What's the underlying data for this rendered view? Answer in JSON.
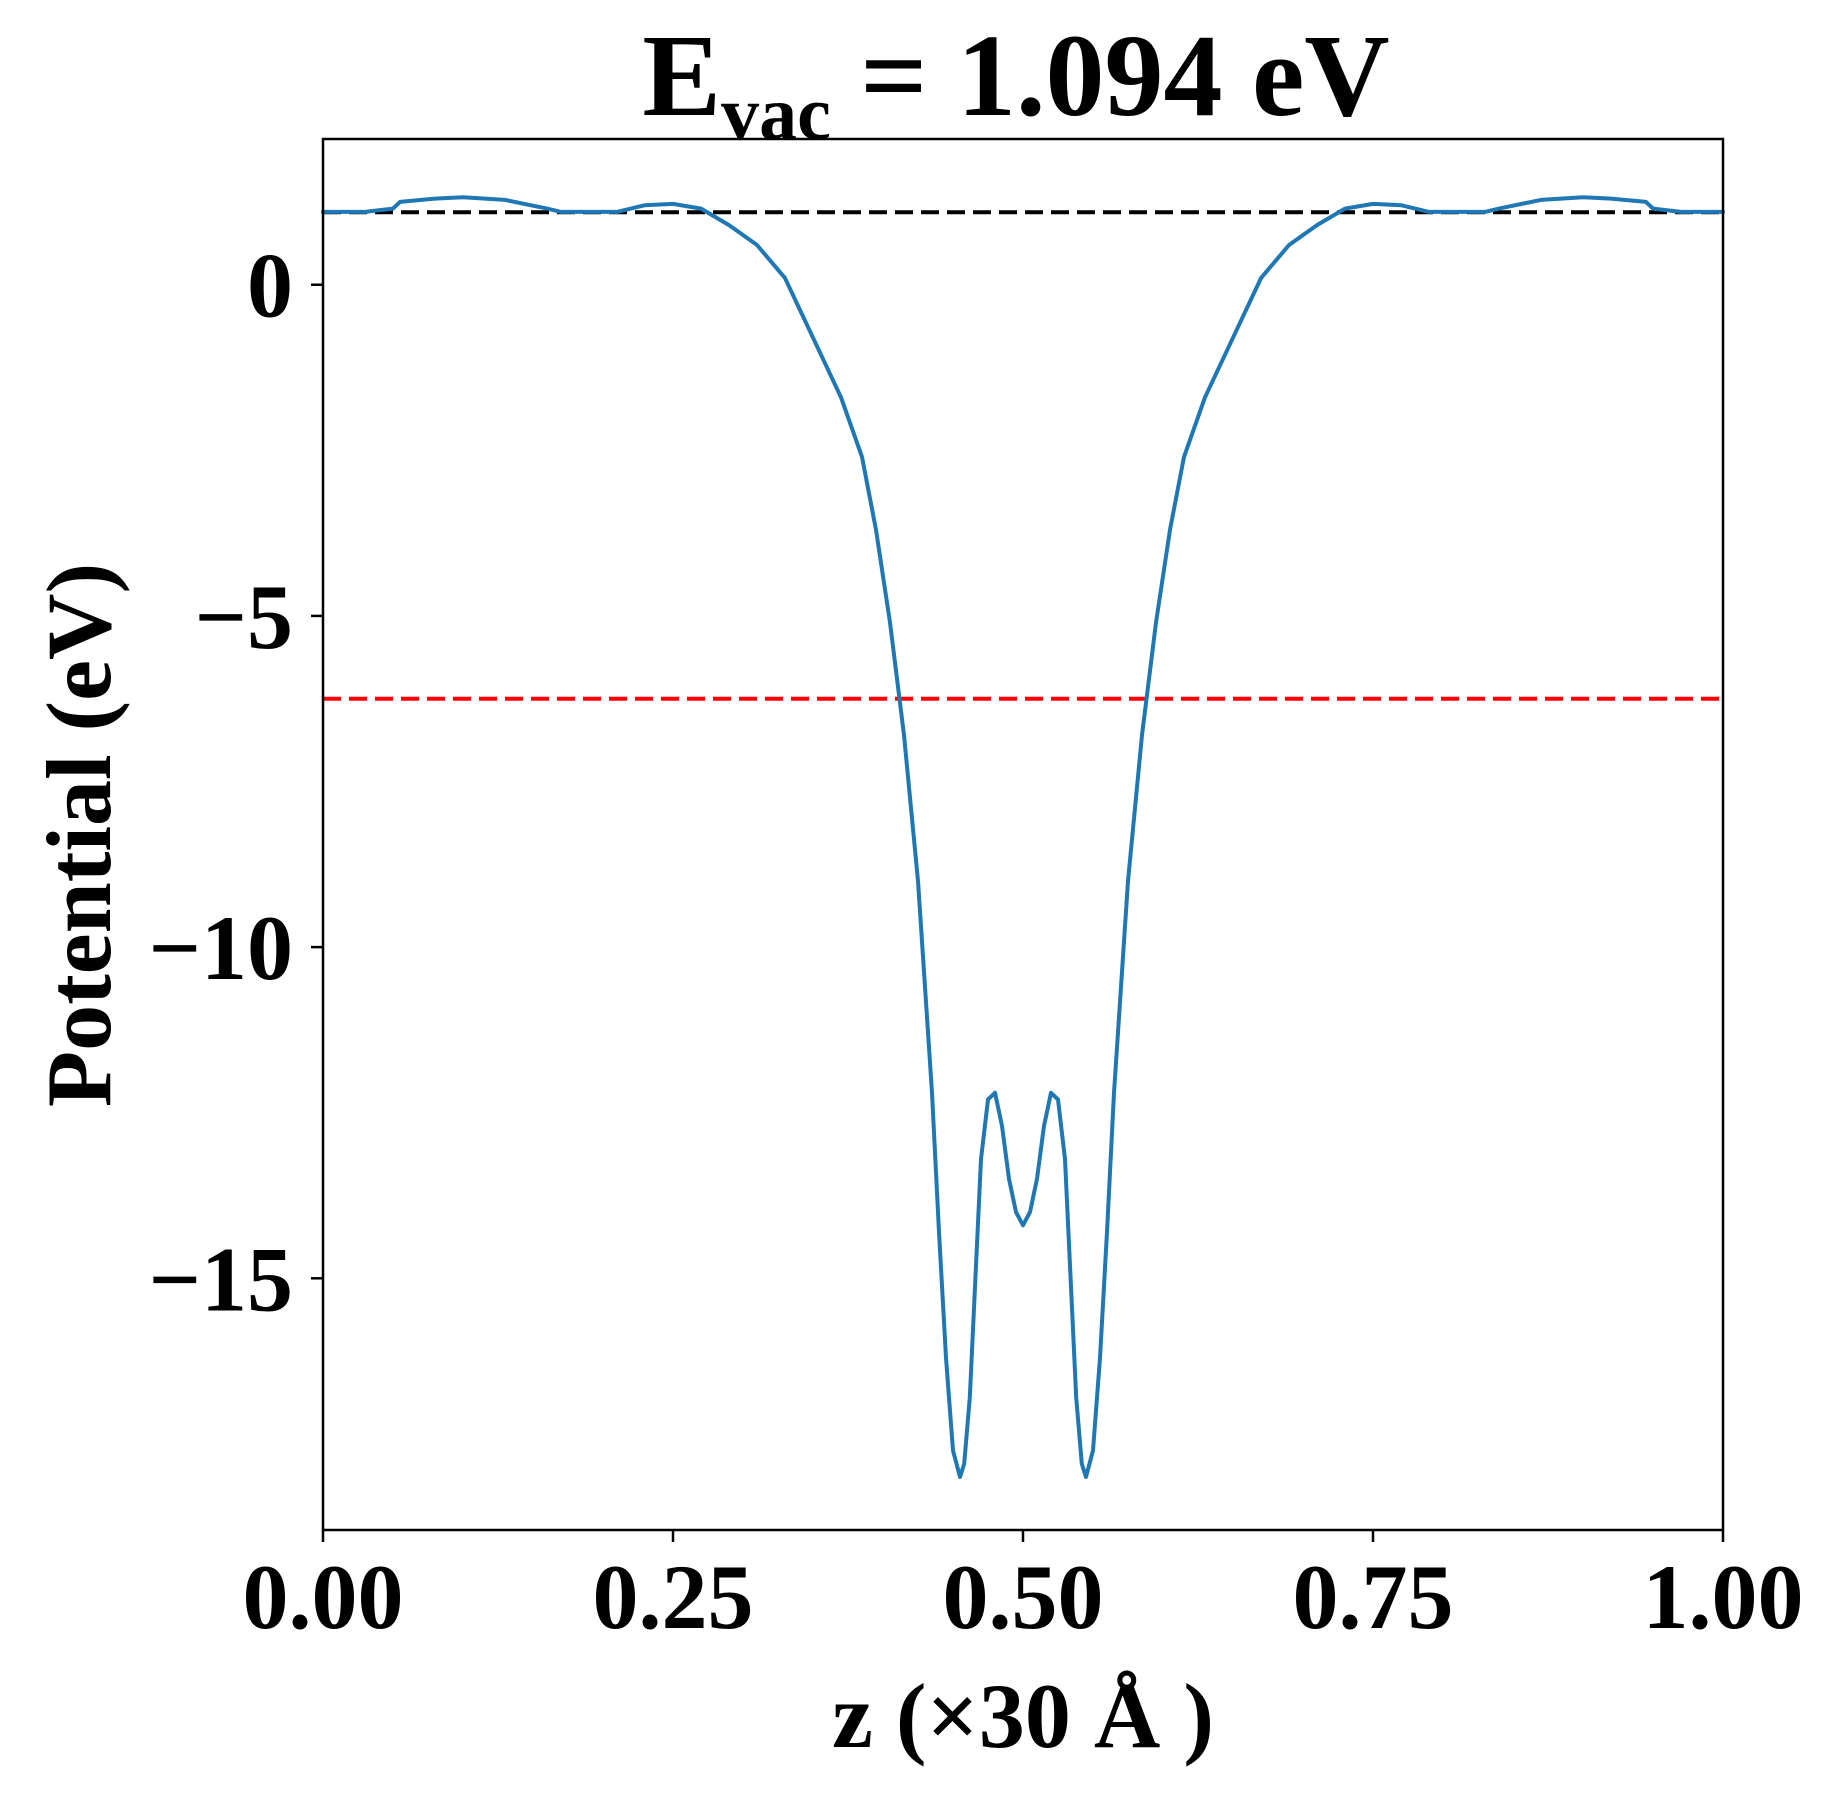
{
  "chart_data": {
    "type": "line",
    "title": {
      "main": "E",
      "subscript": "vac",
      "rest": " = 1.094 eV"
    },
    "xlabel": "z (×30 Å )",
    "ylabel": "Potential (eV)",
    "xlim": [
      0,
      1
    ],
    "ylim": [
      -18.8,
      2.2
    ],
    "xticks": [
      {
        "value": 0.0,
        "label": "0.00"
      },
      {
        "value": 0.25,
        "label": "0.25"
      },
      {
        "value": 0.5,
        "label": "0.50"
      },
      {
        "value": 0.75,
        "label": "0.75"
      },
      {
        "value": 1.0,
        "label": "1.00"
      }
    ],
    "yticks": [
      {
        "value": 0,
        "label": "0"
      },
      {
        "value": -5,
        "label": "−5"
      },
      {
        "value": -10,
        "label": "−10"
      },
      {
        "value": -15,
        "label": "−15"
      }
    ],
    "grid": false,
    "series": [
      {
        "color": "#1f77b4",
        "x": [
          0.0,
          0.03,
          0.05,
          0.055,
          0.08,
          0.1,
          0.13,
          0.16,
          0.17,
          0.185,
          0.21,
          0.23,
          0.25,
          0.27,
          0.29,
          0.31,
          0.33,
          0.35,
          0.37,
          0.385,
          0.395,
          0.405,
          0.415,
          0.425,
          0.435,
          0.44,
          0.445,
          0.45,
          0.455,
          0.458,
          0.462,
          0.466,
          0.47,
          0.475,
          0.48,
          0.485,
          0.49,
          0.495,
          0.5,
          0.505,
          0.51,
          0.515,
          0.52,
          0.525,
          0.53,
          0.534,
          0.538,
          0.542,
          0.545,
          0.55,
          0.555,
          0.56,
          0.565,
          0.575,
          0.585,
          0.595,
          0.605,
          0.615,
          0.63,
          0.65,
          0.67,
          0.69,
          0.71,
          0.73,
          0.75,
          0.77,
          0.79,
          0.815,
          0.83,
          0.84,
          0.87,
          0.9,
          0.92,
          0.945,
          0.95,
          0.97,
          1.0
        ],
        "y": [
          1.1,
          1.1,
          1.15,
          1.25,
          1.3,
          1.32,
          1.28,
          1.15,
          1.1,
          1.1,
          1.1,
          1.2,
          1.22,
          1.15,
          0.9,
          0.6,
          0.1,
          -0.8,
          -1.7,
          -2.6,
          -3.7,
          -5.1,
          -6.8,
          -9.0,
          -12.2,
          -14.3,
          -16.2,
          -17.6,
          -18.0,
          -17.8,
          -16.8,
          -15.0,
          -13.2,
          -12.3,
          -12.2,
          -12.7,
          -13.5,
          -14.0,
          -14.2,
          -14.0,
          -13.5,
          -12.7,
          -12.2,
          -12.3,
          -13.2,
          -15.0,
          -16.8,
          -17.8,
          -18.0,
          -17.6,
          -16.2,
          -14.3,
          -12.2,
          -9.0,
          -6.8,
          -5.1,
          -3.7,
          -2.6,
          -1.7,
          -0.8,
          0.1,
          0.6,
          0.9,
          1.15,
          1.22,
          1.2,
          1.1,
          1.1,
          1.1,
          1.15,
          1.28,
          1.32,
          1.3,
          1.25,
          1.15,
          1.1,
          1.1
        ]
      }
    ],
    "reference_lines": [
      {
        "y": 1.094,
        "color": "#000000",
        "style": "dashed"
      },
      {
        "y": -6.25,
        "color": "#ff0000",
        "style": "dashed"
      }
    ]
  }
}
